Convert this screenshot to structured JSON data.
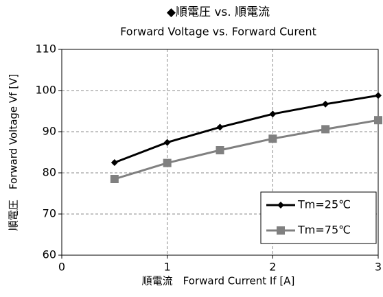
{
  "chart_data": {
    "type": "line",
    "title": "◆順電圧 vs. 順電流",
    "subtitle": "Forward Voltage vs. Forward Curent",
    "x_label": "順電流　Forward Current If [A]",
    "y_label": "順電圧　Forward Voltage Vf [V]",
    "x": [
      0.5,
      1,
      1.5,
      2,
      2.5,
      3
    ],
    "series": [
      {
        "name": "Tm=25℃",
        "color": "#000000",
        "marker": "diamond",
        "values": [
          82.5,
          87.4,
          91.1,
          94.3,
          96.7,
          98.8
        ]
      },
      {
        "name": "Tm=75℃",
        "color": "#808080",
        "marker": "square",
        "values": [
          78.5,
          82.4,
          85.5,
          88.3,
          90.6,
          92.8
        ]
      }
    ],
    "xlim": [
      0,
      3
    ],
    "xticks": [
      0,
      1,
      2,
      3
    ],
    "ylim": [
      60,
      110
    ],
    "yticks": [
      60,
      70,
      80,
      90,
      100,
      110
    ],
    "grid": true,
    "legend": "lower right"
  }
}
